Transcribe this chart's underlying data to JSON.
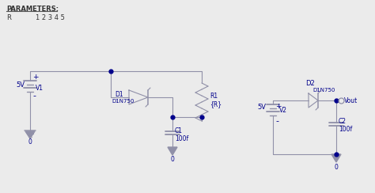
{
  "bg_color": "#ebebeb",
  "line_color": "#9090a8",
  "dot_color": "#00008B",
  "text_color": "#00008B",
  "params_text": "PARAMETERS:",
  "param_r_label": "R",
  "param_r_val": "1 2 3 4 5",
  "V1_label": "V1",
  "V1_val": "5V",
  "D1_label": "D1",
  "D1_sublabel": "D1N750",
  "R1_label": "R1",
  "R1_val": "{R}",
  "C1_label": "C1",
  "C1_val": "100f",
  "V2_label": "V2",
  "V2_val": "5V",
  "D2_label": "D2",
  "D2_sublabel": "D1N750",
  "C2_label": "C2",
  "C2_val": "100f",
  "Vout_label": "Vout",
  "gnd_label": "0"
}
